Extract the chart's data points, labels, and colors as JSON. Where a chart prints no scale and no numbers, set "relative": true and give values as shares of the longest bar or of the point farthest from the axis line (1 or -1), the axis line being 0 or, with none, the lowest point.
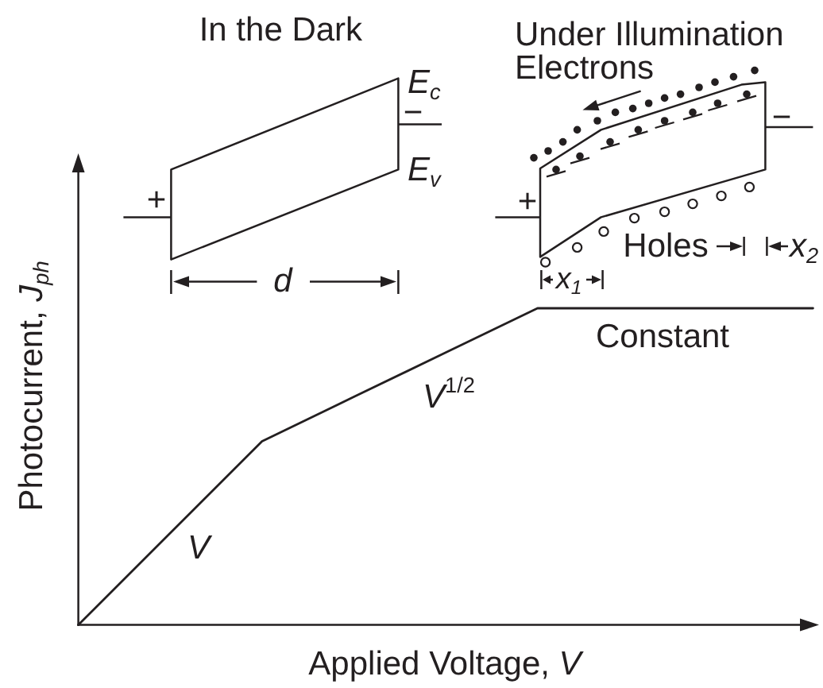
{
  "chart_data": {
    "type": "line",
    "relative": true,
    "xlabel": "Applied Voltage, V",
    "ylabel": "Photocurrent, J$_{ph}$",
    "categories": [
      null,
      null,
      null,
      null,
      null,
      null,
      null,
      null,
      null
    ],
    "series": [
      {
        "color": "#231f20",
        "values": [
          0,
          0.29,
          0.58,
          0.72,
          0.86,
          1,
          1,
          1,
          1
        ]
      }
    ],
    "annotations": [
      "In the Dark",
      "E$_{c}$",
      "−",
      "E$_{v}$",
      "+",
      "d",
      "Under Illumination",
      "Electrons",
      "−",
      "+",
      "Holes",
      "x$_{1}$",
      "x$_{2}$",
      "V",
      "V$^{1/2}$",
      "Constant"
    ]
  }
}
